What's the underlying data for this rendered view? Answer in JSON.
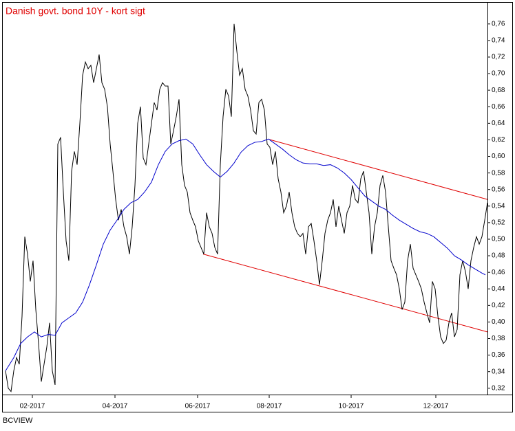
{
  "chart_data": {
    "type": "line",
    "title": "Danish govt. bond 10Y - kort sigt",
    "source": "BCVIEW",
    "xlim": [
      -0.75,
      175
    ],
    "xticks": [
      {
        "value": 9.75,
        "label": "02-2017"
      },
      {
        "value": 39.75,
        "label": "04-2017"
      },
      {
        "value": 69.75,
        "label": "06-2017"
      },
      {
        "value": 95.75,
        "label": "08-2017"
      },
      {
        "value": 125.5,
        "label": "10-2017"
      },
      {
        "value": 156.25,
        "label": "12-2017"
      }
    ],
    "ylim": [
      0.314,
      0.764
    ],
    "yticks": [
      {
        "value": 0.32,
        "label": "0,32"
      },
      {
        "value": 0.34,
        "label": "0,34"
      },
      {
        "value": 0.36,
        "label": "0,36"
      },
      {
        "value": 0.38,
        "label": "0,38"
      },
      {
        "value": 0.4,
        "label": "0,40"
      },
      {
        "value": 0.42,
        "label": "0,42"
      },
      {
        "value": 0.44,
        "label": "0,44"
      },
      {
        "value": 0.46,
        "label": "0,46"
      },
      {
        "value": 0.48,
        "label": "0,48"
      },
      {
        "value": 0.5,
        "label": "0,50"
      },
      {
        "value": 0.52,
        "label": "0,52"
      },
      {
        "value": 0.54,
        "label": "0,54"
      },
      {
        "value": 0.56,
        "label": "0,56"
      },
      {
        "value": 0.58,
        "label": "0,58"
      },
      {
        "value": 0.6,
        "label": "0,60"
      },
      {
        "value": 0.62,
        "label": "0,62"
      },
      {
        "value": 0.64,
        "label": "0,64"
      },
      {
        "value": 0.66,
        "label": "0,66"
      },
      {
        "value": 0.68,
        "label": "0,68"
      },
      {
        "value": 0.7,
        "label": "0,70"
      },
      {
        "value": 0.72,
        "label": "0,72"
      },
      {
        "value": 0.74,
        "label": "0,74"
      },
      {
        "value": 0.76,
        "label": "0,76"
      }
    ],
    "y_axis_side": "right",
    "grid": false,
    "series": [
      {
        "color": "#000000",
        "values": [
          0.341,
          0.32,
          0.316,
          0.341,
          0.357,
          0.349,
          0.407,
          0.503,
          0.482,
          0.449,
          0.474,
          0.415,
          0.374,
          0.328,
          0.349,
          0.37,
          0.399,
          0.341,
          0.324,
          0.615,
          0.623,
          0.557,
          0.498,
          0.474,
          0.582,
          0.606,
          0.59,
          0.64,
          0.698,
          0.714,
          0.706,
          0.71,
          0.689,
          0.706,
          0.723,
          0.689,
          0.681,
          0.66,
          0.615,
          0.582,
          0.548,
          0.523,
          0.536,
          0.515,
          0.503,
          0.482,
          0.515,
          0.565,
          0.64,
          0.66,
          0.598,
          0.59,
          0.615,
          0.64,
          0.665,
          0.656,
          0.681,
          0.689,
          0.685,
          0.685,
          0.615,
          0.631,
          0.648,
          0.669,
          0.59,
          0.565,
          0.557,
          0.532,
          0.523,
          0.515,
          0.498,
          0.49,
          0.482,
          0.532,
          0.515,
          0.507,
          0.49,
          0.482,
          0.59,
          0.648,
          0.681,
          0.673,
          0.648,
          0.76,
          0.727,
          0.698,
          0.706,
          0.681,
          0.673,
          0.656,
          0.631,
          0.627,
          0.665,
          0.669,
          0.656,
          0.615,
          0.611,
          0.59,
          0.606,
          0.573,
          0.557,
          0.532,
          0.54,
          0.557,
          0.532,
          0.515,
          0.507,
          0.503,
          0.507,
          0.482,
          0.515,
          0.519,
          0.498,
          0.474,
          0.445,
          0.474,
          0.507,
          0.523,
          0.532,
          0.548,
          0.515,
          0.54,
          0.523,
          0.507,
          0.532,
          0.54,
          0.565,
          0.548,
          0.544,
          0.573,
          0.582,
          0.557,
          0.532,
          0.482,
          0.515,
          0.532,
          0.565,
          0.577,
          0.557,
          0.515,
          0.474,
          0.465,
          0.457,
          0.44,
          0.415,
          0.424,
          0.474,
          0.494,
          0.465,
          0.457,
          0.449,
          0.44,
          0.424,
          0.411,
          0.399,
          0.449,
          0.44,
          0.407,
          0.382,
          0.374,
          0.378,
          0.399,
          0.411,
          0.382,
          0.391,
          0.457,
          0.474,
          0.461,
          0.44,
          0.474,
          0.49,
          0.503,
          0.494,
          0.503,
          0.523,
          0.544
        ]
      },
      {
        "color": "#0000cc",
        "x": [
          0,
          3,
          5.5,
          8,
          10.5,
          13,
          15.5,
          18,
          20.5,
          23,
          25.5,
          28,
          30.5,
          33,
          35.5,
          38,
          40.5,
          43,
          45.5,
          48,
          50.5,
          53,
          55.5,
          58,
          60.5,
          63,
          65.5,
          68,
          70.5,
          73,
          75.5,
          78,
          80.5,
          83,
          85.5,
          88,
          90.5,
          93,
          95.5,
          98,
          100.5,
          103,
          105.5,
          108,
          110.5,
          113,
          115.5,
          118,
          120.5,
          123,
          125.5,
          128,
          130.5,
          133,
          135.5,
          138,
          140.5,
          143,
          145.5,
          148,
          150.5,
          153,
          155.5,
          158,
          160.5,
          163,
          165.5,
          168,
          170.5,
          173,
          174.25
        ],
        "values": [
          0.341,
          0.357,
          0.374,
          0.382,
          0.388,
          0.382,
          0.385,
          0.384,
          0.399,
          0.405,
          0.411,
          0.424,
          0.445,
          0.469,
          0.494,
          0.511,
          0.523,
          0.536,
          0.544,
          0.548,
          0.557,
          0.569,
          0.59,
          0.606,
          0.615,
          0.619,
          0.621,
          0.615,
          0.602,
          0.59,
          0.582,
          0.575,
          0.582,
          0.592,
          0.605,
          0.613,
          0.617,
          0.618,
          0.621,
          0.615,
          0.609,
          0.602,
          0.596,
          0.592,
          0.591,
          0.591,
          0.589,
          0.59,
          0.586,
          0.58,
          0.572,
          0.562,
          0.552,
          0.546,
          0.54,
          0.536,
          0.529,
          0.523,
          0.518,
          0.513,
          0.509,
          0.507,
          0.503,
          0.496,
          0.489,
          0.48,
          0.475,
          0.469,
          0.464,
          0.459,
          0.457
        ]
      }
    ],
    "trendlines": [
      {
        "color": "#e00000",
        "x": [
          95.75,
          175
        ],
        "values": [
          0.6205,
          0.548
        ]
      },
      {
        "color": "#e00000",
        "x": [
          71.75,
          175
        ],
        "values": [
          0.482,
          0.388
        ]
      }
    ]
  }
}
